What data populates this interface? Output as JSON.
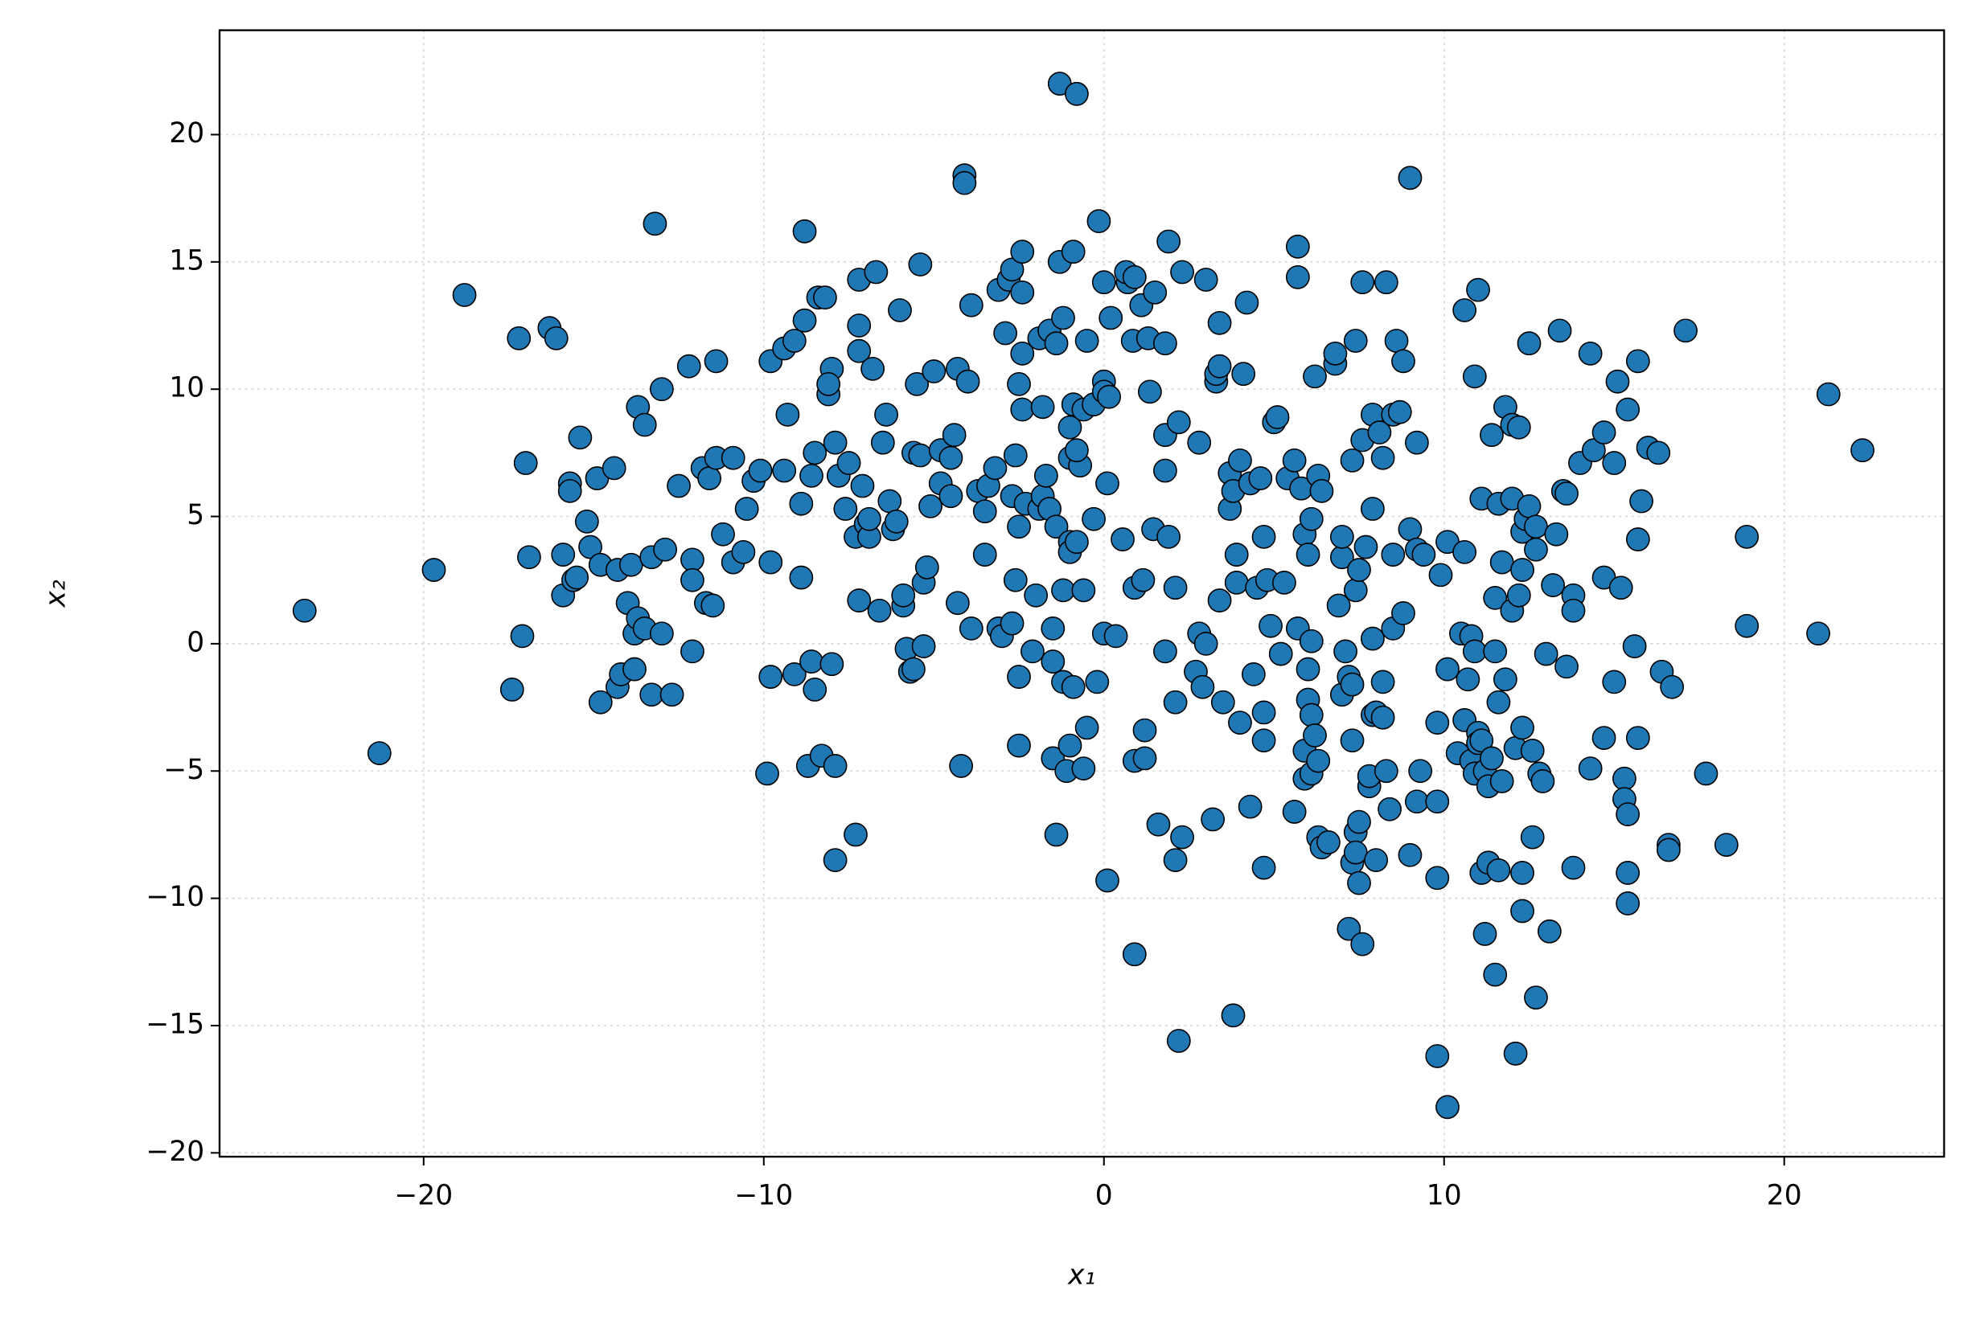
{
  "chart_data": {
    "type": "scatter",
    "x_label": "x₁",
    "y_label": "x₂",
    "color": "#1f77b4",
    "edge_color": "#000000",
    "grid": true,
    "xlim": [
      -26,
      24.7
    ],
    "ylim": [
      -20.15,
      24.1
    ],
    "xticks": [
      {
        "value": -20,
        "label": "−20"
      },
      {
        "value": -10,
        "label": "−10"
      },
      0,
      10,
      20
    ],
    "yticks": [
      {
        "value": -20,
        "label": "−20"
      },
      {
        "value": -15,
        "label": "−15"
      },
      {
        "value": -10,
        "label": "−10"
      },
      {
        "value": -5,
        "label": "−5"
      },
      0,
      5,
      10,
      15,
      20
    ],
    "x": [
      -23.5,
      -21.3,
      -19.7,
      -18.8,
      -17.4,
      -17.2,
      -17.1,
      -17,
      -16.9,
      -16.3,
      -16.1,
      -15.9,
      -15.9,
      -15.7,
      -15.7,
      -15.6,
      -15.5,
      -15.4,
      -15.2,
      -15.1,
      -14.9,
      -14.8,
      -14.8,
      -14.4,
      -14.3,
      -14.3,
      -14.2,
      -14,
      -13.9,
      -13.8,
      -13.8,
      -13.7,
      -13.7,
      -13.5,
      -13.5,
      -13.3,
      -13.3,
      -13.2,
      -13,
      -13,
      -12.9,
      -12.7,
      -12.5,
      -12.2,
      -12.1,
      -12.1,
      -12.1,
      -11.8,
      -11.7,
      -11.6,
      -11.5,
      -11.4,
      -11.4,
      -11.2,
      -10.9,
      -10.9,
      -10.6,
      -10.5,
      -10.3,
      -10.1,
      -9.9,
      -9.8,
      -9.8,
      -9.8,
      -9.4,
      -9.4,
      -9.3,
      -9.1,
      -9.1,
      -8.9,
      -8.9,
      -8.8,
      -8.7,
      -8.6,
      -8.6,
      -8.5,
      -8.5,
      -8.3,
      -8.1,
      -8,
      -7.9,
      -7.9,
      -8.8,
      -8.4,
      -8.2,
      -8,
      -8.1,
      -7.9,
      -7.8,
      -7.5,
      -7.6,
      -7.3,
      -7.2,
      -7.2,
      -7.2,
      -7.1,
      -7,
      -6.9,
      -6.9,
      -6.8,
      -6.7,
      -6.5,
      -6.4,
      -6.3,
      -6.2,
      -6.1,
      -7.3,
      -7.2,
      -6.6,
      -6,
      -5.9,
      -5.9,
      -5.8,
      -5.7,
      -5.6,
      -5.6,
      -5.5,
      -5.4,
      -5.4,
      -5.3,
      -5.3,
      -5.2,
      -5.1,
      -5,
      -4.8,
      -4.8,
      -4.5,
      -4.5,
      -4.4,
      -4.3,
      -4.3,
      -4.2,
      -4.1,
      -4.1,
      -4,
      -3.9,
      -3.9,
      -3.7,
      -3.5,
      -3.5,
      -3.4,
      -3.2,
      -3.1,
      -3.1,
      -3,
      -2.9,
      -2.8,
      -2.7,
      -2.7,
      -2.7,
      -2.6,
      -2.5,
      -2.5,
      -2.3,
      -2.1,
      -2,
      -1.9,
      -2.4,
      -2.6,
      -2.5,
      -2.5,
      -2.4,
      -2.4,
      -2.4,
      -1.9,
      -1.8,
      -1.8,
      -1.7,
      -1.6,
      -1.6,
      -1.5,
      -1.5,
      -1.5,
      -1.4,
      -1.4,
      -1.4,
      -1.3,
      -1.2,
      -1.2,
      -1.2,
      -1.1,
      -1,
      -1,
      -1,
      -1,
      -0.9,
      -0.9,
      -1.3,
      -0.8,
      -0.7,
      -0.6,
      -0.6,
      -0.9,
      -0.8,
      -1,
      -0.8,
      -0.5,
      -0.6,
      -0.5,
      -0.3,
      -0.3,
      -0.2,
      -0.15,
      0,
      0,
      0.15,
      0,
      0.1,
      0,
      0.1,
      0.2,
      0.7,
      0.55,
      0.35,
      0.65,
      0.9,
      0.85,
      0.9,
      0.9,
      0.9,
      1.1,
      1.15,
      1.2,
      1.2,
      1.3,
      1.35,
      1.5,
      1.45,
      1.6,
      1.8,
      1.8,
      1.8,
      1.9,
      1.8,
      1.9,
      2.1,
      2.1,
      2.1,
      2.2,
      2.2,
      2.3,
      2.3,
      2.8,
      2.8,
      2.7,
      2.9,
      3,
      3,
      3.2,
      3.3,
      3.3,
      3.4,
      3.4,
      3.4,
      3.5,
      3.7,
      3.7,
      3.8,
      3.8,
      3.9,
      3.9,
      4,
      4,
      4.1,
      4.2,
      4.3,
      4.3,
      4.4,
      4.5,
      4.6,
      4.7,
      4.7,
      4.7,
      4.8,
      4.7,
      4.9,
      5,
      5.1,
      5.2,
      5.3,
      5.4,
      5.6,
      5.6,
      5.7,
      5.7,
      5.7,
      5.8,
      5.9,
      5.9,
      5.9,
      6,
      6,
      6,
      6.1,
      6.1,
      6.1,
      6.1,
      6.2,
      6.2,
      6.3,
      6.3,
      6.3,
      6.4,
      6.4,
      6.6,
      6.8,
      6.8,
      6.9,
      7,
      7,
      7,
      7.1,
      7.2,
      7.2,
      7.3,
      7.3,
      7.3,
      7.3,
      7.4,
      7.4,
      7.4,
      7.4,
      7.5,
      7.5,
      7.5,
      7.6,
      7.6,
      7.6,
      7.7,
      7.8,
      7.8,
      7.9,
      7.9,
      7.9,
      7.9,
      8,
      8,
      8.1,
      8.2,
      8.2,
      8.2,
      8.3,
      8.3,
      8.4,
      8.5,
      8.5,
      8.6,
      8.5,
      8.7,
      8.8,
      8.8,
      9,
      9.2,
      9.2,
      9.3,
      9.4,
      9,
      9,
      9.2,
      9.8,
      9.8,
      9.8,
      9.9,
      10.1,
      10.1,
      9.8,
      10.1,
      10.4,
      10.6,
      10.6,
      10.5,
      10.6,
      10.7,
      10.8,
      10.8,
      10.9,
      10.9,
      10.9,
      11,
      11,
      11,
      11.1,
      11.1,
      11.1,
      11.2,
      11.3,
      11.3,
      11.2,
      11.4,
      11.4,
      11.6,
      11.5,
      11.5,
      11.5,
      11.6,
      11.6,
      11.7,
      11.7,
      11.8,
      11.8,
      12,
      12,
      12,
      12.1,
      12.1,
      12.2,
      12.2,
      12.3,
      12.3,
      12.3,
      12.3,
      12.3,
      12.4,
      12.5,
      12.5,
      12.6,
      12.6,
      12.7,
      12.7,
      12.7,
      12.8,
      12.9,
      13,
      13.1,
      13.2,
      13.3,
      13.4,
      13.5,
      13.6,
      13.6,
      13.8,
      13.8,
      13.8,
      14,
      14.3,
      14.3,
      14.4,
      14.7,
      14.7,
      14.7,
      15,
      15,
      15.1,
      15.2,
      15.3,
      15.3,
      15.4,
      15.4,
      15.4,
      15.4,
      15.6,
      15.7,
      15.7,
      15.7,
      15.8,
      16,
      16.3,
      16.4,
      16.6,
      16.6,
      16.7,
      17.1,
      17.7,
      18.3,
      18.9,
      18.9,
      21,
      21.3,
      22.3
    ],
    "values": [
      1.3,
      -4.3,
      2.9,
      13.7,
      -1.8,
      12,
      0.3,
      7.1,
      3.4,
      12.4,
      12,
      3.5,
      1.9,
      6.3,
      6,
      2.5,
      2.6,
      8.1,
      4.8,
      3.8,
      6.5,
      3.1,
      -2.3,
      6.9,
      2.9,
      -1.7,
      -1.2,
      1.6,
      3.1,
      -1,
      0.4,
      9.3,
      1,
      8.6,
      0.6,
      3.4,
      -2,
      16.5,
      0.4,
      10,
      3.7,
      -2,
      6.2,
      10.9,
      3.3,
      2.5,
      -0.3,
      6.9,
      1.6,
      6.5,
      1.5,
      11.1,
      7.3,
      4.3,
      7.3,
      3.2,
      3.6,
      5.3,
      6.4,
      6.8,
      -5.1,
      -1.3,
      11.1,
      3.2,
      11.6,
      6.8,
      9,
      11.9,
      -1.2,
      5.5,
      2.6,
      12.7,
      -4.8,
      6.6,
      -0.7,
      7.5,
      -1.8,
      -4.4,
      9.8,
      -0.8,
      -8.5,
      -4.8,
      16.2,
      13.6,
      13.6,
      10.8,
      10.2,
      7.9,
      6.6,
      7.1,
      5.3,
      4.2,
      12.5,
      11.5,
      14.3,
      6.2,
      4.7,
      4.2,
      4.9,
      10.8,
      14.6,
      7.9,
      9,
      5.6,
      4.5,
      4.8,
      -7.5,
      1.7,
      1.3,
      13.1,
      1.5,
      1.9,
      -0.2,
      -1.1,
      -1,
      7.5,
      10.2,
      14.9,
      7.4,
      -0.1,
      2.4,
      3,
      5.4,
      10.7,
      7.6,
      6.3,
      7.3,
      5.8,
      8.2,
      10.8,
      1.6,
      -4.8,
      18.4,
      18.1,
      10.3,
      13.3,
      0.6,
      6,
      5.2,
      3.5,
      6.2,
      6.9,
      13.9,
      0.6,
      0.3,
      12.2,
      14.3,
      14.7,
      5.8,
      0.8,
      7.4,
      -1.3,
      -4,
      5.5,
      -0.3,
      1.9,
      5.3,
      9.2,
      2.5,
      4.6,
      10.2,
      11.4,
      15.4,
      13.8,
      12,
      9.3,
      5.8,
      6.6,
      12.3,
      5.3,
      -4.5,
      0.6,
      -0.7,
      4.6,
      11.8,
      -7.5,
      15,
      2.1,
      -1.5,
      12.8,
      -5,
      8.5,
      7.3,
      4,
      3.6,
      15.4,
      9.4,
      22,
      21.6,
      7,
      2.1,
      9.2,
      -1.7,
      7.6,
      -4,
      4,
      11.9,
      -4.9,
      -3.3,
      9.4,
      4.9,
      -1.5,
      16.6,
      10.3,
      9.9,
      9.7,
      14.2,
      6.3,
      0.4,
      -9.3,
      12.8,
      14.2,
      4.1,
      0.3,
      14.6,
      14.4,
      11.9,
      2.2,
      -4.6,
      -12.2,
      13.3,
      2.5,
      -4.5,
      -3.4,
      12,
      9.9,
      13.8,
      4.5,
      -7.1,
      -0.3,
      8.2,
      11.8,
      15.8,
      6.8,
      4.2,
      2.2,
      -2.3,
      -8.5,
      -15.6,
      8.7,
      14.6,
      -7.6,
      7.9,
      0.4,
      -1.1,
      -1.7,
      14.3,
      0,
      -6.9,
      10.3,
      10.6,
      10.9,
      12.6,
      1.7,
      -2.3,
      6.7,
      5.3,
      -14.6,
      6,
      2.4,
      3.5,
      7.2,
      -3.1,
      10.6,
      13.4,
      6.3,
      -6.4,
      -1.2,
      2.2,
      6.5,
      4.2,
      -2.7,
      -3.8,
      2.5,
      -8.8,
      0.7,
      8.7,
      8.9,
      -0.4,
      2.4,
      6.5,
      7.2,
      -6.6,
      15.6,
      14.4,
      0.6,
      6.1,
      -5.3,
      -4.2,
      4.3,
      -2.2,
      -1,
      3.5,
      4.9,
      -2.8,
      -5.1,
      0.1,
      10.5,
      -3.6,
      -4.6,
      6.6,
      -7.6,
      -8,
      6,
      -7.8,
      11,
      11.4,
      1.5,
      3.4,
      4.2,
      -2,
      -0.3,
      -11.2,
      -1.3,
      7.2,
      -3.8,
      -8.6,
      -1.6,
      11.9,
      -7.4,
      -8.2,
      2.1,
      2.9,
      -7,
      -9.4,
      -11.8,
      14.2,
      8,
      3.8,
      -5.6,
      -5.2,
      -2.8,
      0.2,
      5.3,
      9,
      -8.5,
      -2.7,
      8.3,
      7.3,
      -2.9,
      -1.5,
      14.2,
      -5,
      -6.5,
      3.5,
      0.6,
      11.9,
      9,
      9.1,
      11.1,
      1.2,
      4.5,
      3.7,
      -6.2,
      -5,
      3.5,
      -8.3,
      18.3,
      7.9,
      -6.2,
      -9.2,
      -3.1,
      2.7,
      4,
      -1,
      -16.2,
      -18.2,
      -4.3,
      3.6,
      -3,
      0.4,
      13.1,
      -1.4,
      0.3,
      -4.6,
      -5.1,
      10.5,
      -0.3,
      -3.5,
      -3.9,
      13.9,
      -9,
      -3.8,
      5.7,
      -5,
      -8.6,
      -5.6,
      -11.4,
      8.2,
      -4.5,
      -8.9,
      -13,
      -0.3,
      1.8,
      -2.3,
      5.5,
      -5.4,
      3.2,
      -1.4,
      9.3,
      1.3,
      5.7,
      8.6,
      -4.1,
      -16.1,
      1.9,
      8.5,
      -3.3,
      -10.5,
      -9,
      4.4,
      2.9,
      4.9,
      11.8,
      5.4,
      -4.2,
      -7.6,
      3.7,
      4.6,
      -13.9,
      -5.1,
      -5.4,
      -0.4,
      -11.3,
      2.3,
      4.3,
      12.3,
      6,
      5.9,
      -0.9,
      1.9,
      1.3,
      -8.8,
      7.1,
      11.4,
      -4.9,
      7.6,
      -3.7,
      8.3,
      2.6,
      -1.5,
      7.1,
      10.3,
      2.2,
      -5.3,
      -6.1,
      9.2,
      -6.7,
      -9,
      -10.2,
      -0.1,
      11.1,
      4.1,
      -3.7,
      5.6,
      7.7,
      7.5,
      -1.1,
      -7.9,
      -8.1,
      -1.7,
      12.3,
      -5.1,
      -7.9,
      4.2,
      0.7,
      0.4,
      9.8,
      7.6
    ]
  }
}
